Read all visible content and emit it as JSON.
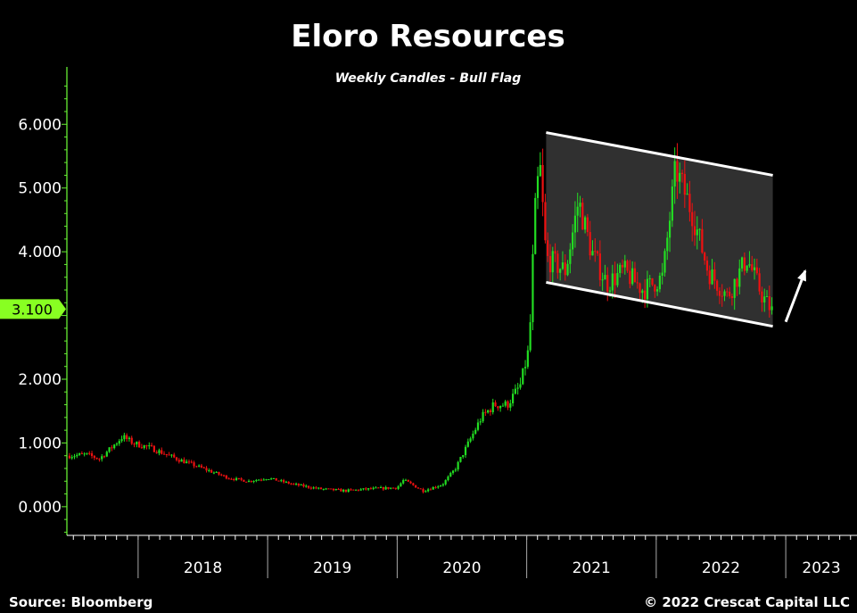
{
  "chart_data": {
    "type": "candlestick",
    "title": "Eloro Resources",
    "subtitle": "Weekly Candles - Bull Flag",
    "y_ticks": [
      {
        "value": 0,
        "label": "0.000"
      },
      {
        "value": 1,
        "label": "1.000"
      },
      {
        "value": 2,
        "label": "2.000"
      },
      {
        "value": 4,
        "label": "4.000"
      },
      {
        "value": 5,
        "label": "5.000"
      },
      {
        "value": 6,
        "label": "6.000"
      }
    ],
    "ylim": [
      -0.45,
      6.9
    ],
    "xlim": [
      2017.45,
      2023.55
    ],
    "year_labels": [
      {
        "label": "2018",
        "start": 2018.0,
        "end": 2019.0
      },
      {
        "label": "2019",
        "start": 2019.0,
        "end": 2020.0
      },
      {
        "label": "2020",
        "start": 2020.0,
        "end": 2021.0
      },
      {
        "label": "2021",
        "start": 2021.0,
        "end": 2022.0
      },
      {
        "label": "2022",
        "start": 2022.0,
        "end": 2023.0
      },
      {
        "label": "2023",
        "start": 2023.0,
        "end": 2023.55
      }
    ],
    "last_price": {
      "value": 3.1,
      "label": "3.100"
    },
    "price_path": [
      [
        2017.47,
        0.8
      ],
      [
        2017.6,
        0.82
      ],
      [
        2017.7,
        0.75
      ],
      [
        2017.78,
        0.9
      ],
      [
        2017.88,
        1.1
      ],
      [
        2017.96,
        1.0
      ],
      [
        2018.1,
        0.92
      ],
      [
        2018.3,
        0.75
      ],
      [
        2018.5,
        0.6
      ],
      [
        2018.7,
        0.45
      ],
      [
        2018.85,
        0.4
      ],
      [
        2019.0,
        0.45
      ],
      [
        2019.2,
        0.35
      ],
      [
        2019.4,
        0.28
      ],
      [
        2019.6,
        0.25
      ],
      [
        2019.8,
        0.28
      ],
      [
        2020.0,
        0.3
      ],
      [
        2020.05,
        0.42
      ],
      [
        2020.2,
        0.25
      ],
      [
        2020.35,
        0.35
      ],
      [
        2020.45,
        0.6
      ],
      [
        2020.55,
        1.0
      ],
      [
        2020.65,
        1.4
      ],
      [
        2020.75,
        1.6
      ],
      [
        2020.85,
        1.6
      ],
      [
        2020.95,
        1.9
      ],
      [
        2021.02,
        2.5
      ],
      [
        2021.06,
        4.5
      ],
      [
        2021.1,
        5.4
      ],
      [
        2021.15,
        3.9
      ],
      [
        2021.3,
        3.7
      ],
      [
        2021.4,
        4.8
      ],
      [
        2021.5,
        4.0
      ],
      [
        2021.62,
        3.5
      ],
      [
        2021.75,
        3.7
      ],
      [
        2021.9,
        3.4
      ],
      [
        2022.05,
        3.6
      ],
      [
        2022.15,
        5.3
      ],
      [
        2022.28,
        4.6
      ],
      [
        2022.4,
        3.7
      ],
      [
        2022.55,
        3.3
      ],
      [
        2022.7,
        3.9
      ],
      [
        2022.82,
        3.3
      ],
      [
        2022.9,
        3.05
      ]
    ],
    "bull_flag_channel": {
      "upper": [
        [
          2021.15,
          5.87
        ],
        [
          2022.9,
          5.2
        ]
      ],
      "lower": [
        [
          2021.15,
          3.52
        ],
        [
          2022.9,
          2.83
        ]
      ],
      "fill": "#333333",
      "line_color": "#ffffff"
    },
    "arrow": {
      "from": [
        2023.0,
        2.9
      ],
      "to": [
        2023.15,
        3.7
      ],
      "color": "#ffffff"
    },
    "colors": {
      "up": "#22dd22",
      "down": "#ee1111",
      "axis": "#66ee33",
      "label_bg": "#88ff22",
      "background": "#000000"
    }
  },
  "footer": {
    "source": "Source: Bloomberg",
    "copyright": "© 2022 Crescat Capital LLC"
  }
}
